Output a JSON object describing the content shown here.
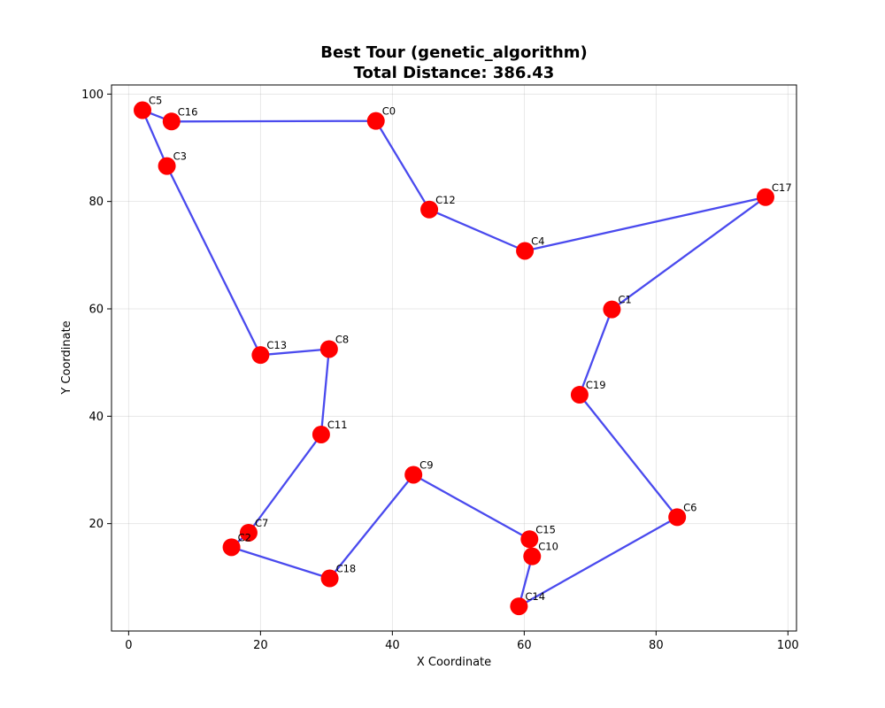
{
  "chart_data": {
    "type": "scatter",
    "title_line1": "Best Tour (genetic_algorithm)",
    "title_line2": "Total Distance: 386.43",
    "xlabel": "X Coordinate",
    "ylabel": "Y Coordinate",
    "xlim": [
      -2.6,
      101.3
    ],
    "ylim": [
      0,
      101.7
    ],
    "xticks": [
      0,
      20,
      40,
      60,
      80,
      100
    ],
    "yticks": [
      20,
      40,
      60,
      80,
      100
    ],
    "grid": true,
    "colors": {
      "route": "#4a4aee",
      "city": "#ff0000"
    },
    "cities": [
      {
        "name": "C0",
        "x": 37.5,
        "y": 95.0
      },
      {
        "name": "C1",
        "x": 73.3,
        "y": 59.9
      },
      {
        "name": "C2",
        "x": 15.6,
        "y": 15.6
      },
      {
        "name": "C3",
        "x": 5.8,
        "y": 86.6
      },
      {
        "name": "C4",
        "x": 60.1,
        "y": 70.8
      },
      {
        "name": "C5",
        "x": 2.1,
        "y": 97.0
      },
      {
        "name": "C6",
        "x": 83.2,
        "y": 21.2
      },
      {
        "name": "C7",
        "x": 18.2,
        "y": 18.3
      },
      {
        "name": "C8",
        "x": 30.4,
        "y": 52.5
      },
      {
        "name": "C9",
        "x": 43.2,
        "y": 29.1
      },
      {
        "name": "C10",
        "x": 61.2,
        "y": 13.9
      },
      {
        "name": "C11",
        "x": 29.2,
        "y": 36.6
      },
      {
        "name": "C12",
        "x": 45.6,
        "y": 78.5
      },
      {
        "name": "C13",
        "x": 20.0,
        "y": 51.4
      },
      {
        "name": "C14",
        "x": 59.2,
        "y": 4.6
      },
      {
        "name": "C15",
        "x": 60.8,
        "y": 17.1
      },
      {
        "name": "C16",
        "x": 6.5,
        "y": 94.9
      },
      {
        "name": "C17",
        "x": 96.6,
        "y": 80.8
      },
      {
        "name": "C18",
        "x": 30.5,
        "y": 9.8
      },
      {
        "name": "C19",
        "x": 68.4,
        "y": 44.0
      }
    ],
    "tour": [
      "C0",
      "C12",
      "C4",
      "C17",
      "C1",
      "C19",
      "C6",
      "C14",
      "C10",
      "C15",
      "C9",
      "C18",
      "C2",
      "C7",
      "C11",
      "C8",
      "C13",
      "C3",
      "C5",
      "C16",
      "C0"
    ]
  }
}
